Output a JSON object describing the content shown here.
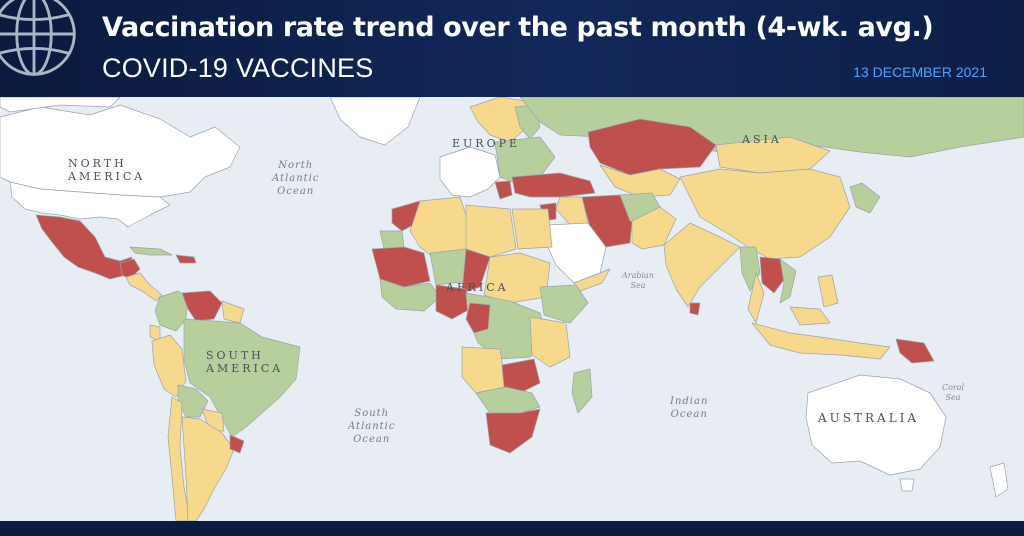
{
  "header": {
    "title": "Vaccination rate trend over the past month (4-wk. avg.)",
    "subtitle": "COVID-19  VACCINES",
    "date": "13 DECEMBER 2021"
  },
  "logo": {
    "icon": "globe-icon"
  },
  "map": {
    "continent_labels": {
      "north_america": [
        "NORTH",
        "AMERICA"
      ],
      "south_america": [
        "SOUTH",
        "AMERICA"
      ],
      "europe": "EUROPE",
      "asia": "ASIA",
      "africa": "AFRICA",
      "australia": "AUSTRALIA"
    },
    "ocean_labels": {
      "north_atlantic": [
        "North",
        "Atlantic",
        "Ocean"
      ],
      "south_atlantic": [
        "South",
        "Atlantic",
        "Ocean"
      ],
      "indian": [
        "Indian",
        "Ocean"
      ],
      "arabian_sea": [
        "Arabian",
        "Sea"
      ],
      "coral_sea": [
        "Coral",
        "Sea"
      ]
    },
    "colors": {
      "ocean": "#e8edf3",
      "red": "#c0504d",
      "yellow": "#f7d98d",
      "green": "#b7cf9c",
      "no_data": "#ffffff",
      "border": "#9aa3ad"
    }
  }
}
